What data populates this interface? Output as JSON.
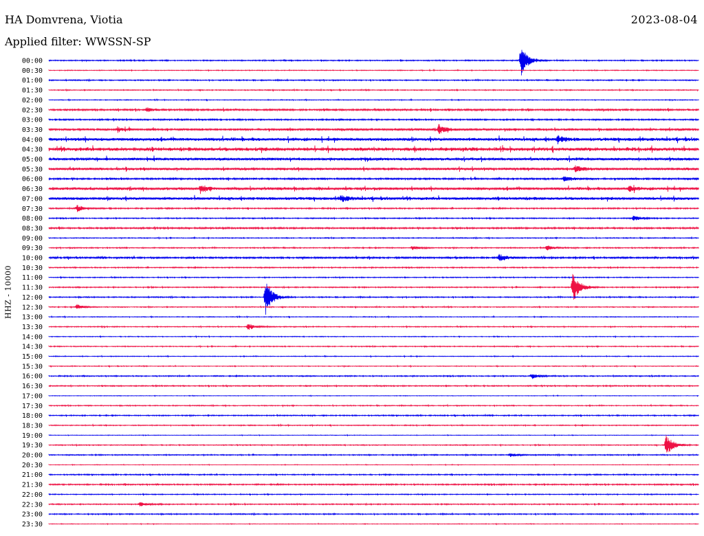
{
  "header": {
    "station": "HA Domvrena, Viotia",
    "date": "2023-08-04",
    "filter_label": "Applied filter:",
    "filter_value": "WWSSN-SP"
  },
  "colors": {
    "even": "#0000ee",
    "odd": "#ee1144"
  },
  "chart_data": {
    "type": "line",
    "title": "HA Domvrena, Viotia",
    "date": "2023-08-04",
    "ylabel": "HHZ - 10000",
    "rows": [
      "00:00",
      "00:30",
      "01:00",
      "01:30",
      "02:00",
      "02:30",
      "03:00",
      "03:30",
      "04:00",
      "04:30",
      "05:00",
      "05:30",
      "06:00",
      "06:30",
      "07:00",
      "07:30",
      "08:00",
      "08:30",
      "09:00",
      "09:30",
      "10:00",
      "10:30",
      "11:00",
      "11:30",
      "12:00",
      "12:30",
      "13:00",
      "13:30",
      "14:00",
      "14:30",
      "15:00",
      "15:30",
      "16:00",
      "16:30",
      "17:00",
      "17:30",
      "18:00",
      "18:30",
      "19:00",
      "19:30",
      "20:00",
      "20:30",
      "21:00",
      "21:30",
      "22:00",
      "22:30",
      "23:00",
      "23:30"
    ],
    "row_duration_minutes": 30,
    "base_noise": [
      0.6,
      0.4,
      0.6,
      0.5,
      0.4,
      1.0,
      0.8,
      1.2,
      1.8,
      2.0,
      1.6,
      1.4,
      1.0,
      1.6,
      1.6,
      0.7,
      0.6,
      0.9,
      0.5,
      0.6,
      1.0,
      0.6,
      0.5,
      0.6,
      0.6,
      0.5,
      0.4,
      0.5,
      0.4,
      0.5,
      0.4,
      0.4,
      0.6,
      0.6,
      0.3,
      0.5,
      0.6,
      0.5,
      0.3,
      0.5,
      0.6,
      0.3,
      0.6,
      0.7,
      0.5,
      0.6,
      0.6,
      0.3
    ],
    "events": [
      {
        "row": "00:00",
        "minute": 21.8,
        "amplitude": 22
      },
      {
        "row": "02:30",
        "minute": 4.5,
        "amplitude": 3
      },
      {
        "row": "03:30",
        "minute": 18.0,
        "amplitude": 7
      },
      {
        "row": "03:30",
        "minute": 3.2,
        "amplitude": 3
      },
      {
        "row": "04:00",
        "minute": 23.5,
        "amplitude": 5
      },
      {
        "row": "05:30",
        "minute": 24.3,
        "amplitude": 5
      },
      {
        "row": "06:00",
        "minute": 23.8,
        "amplitude": 5
      },
      {
        "row": "06:30",
        "minute": 7.0,
        "amplitude": 5
      },
      {
        "row": "06:30",
        "minute": 26.8,
        "amplitude": 4
      },
      {
        "row": "07:00",
        "minute": 13.5,
        "amplitude": 5
      },
      {
        "row": "07:30",
        "minute": 1.3,
        "amplitude": 5
      },
      {
        "row": "08:00",
        "minute": 27.0,
        "amplitude": 4
      },
      {
        "row": "09:30",
        "minute": 16.8,
        "amplitude": 3
      },
      {
        "row": "09:30",
        "minute": 23.0,
        "amplitude": 4
      },
      {
        "row": "10:00",
        "minute": 20.8,
        "amplitude": 5
      },
      {
        "row": "11:30",
        "minute": 24.2,
        "amplitude": 22
      },
      {
        "row": "12:00",
        "minute": 10.0,
        "amplitude": 25
      },
      {
        "row": "12:30",
        "minute": 1.3,
        "amplitude": 4
      },
      {
        "row": "13:30",
        "minute": 9.2,
        "amplitude": 5
      },
      {
        "row": "16:00",
        "minute": 22.3,
        "amplitude": 4
      },
      {
        "row": "19:30",
        "minute": 28.5,
        "amplitude": 16
      },
      {
        "row": "20:00",
        "minute": 21.3,
        "amplitude": 3
      },
      {
        "row": "22:30",
        "minute": 4.2,
        "amplitude": 3
      }
    ]
  }
}
